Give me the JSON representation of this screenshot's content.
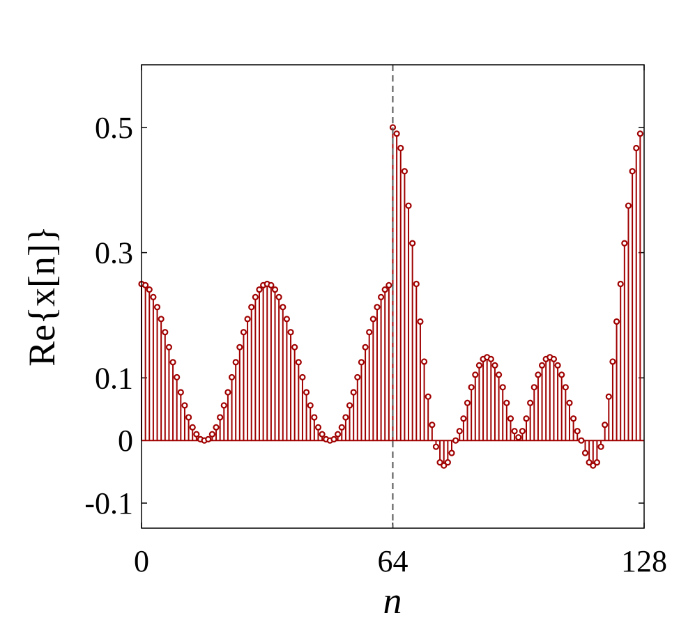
{
  "chart_data": {
    "type": "stem",
    "xlabel": "n",
    "ylabel": "Re{x[n]}",
    "xlim": [
      0,
      128
    ],
    "ylim": [
      -0.14,
      0.6
    ],
    "xticks": [
      0,
      64,
      128
    ],
    "yticks": [
      -0.1,
      0,
      0.1,
      0.3,
      0.5
    ],
    "vline": 64,
    "color": "#a00000",
    "x": [
      0,
      1,
      2,
      3,
      4,
      5,
      6,
      7,
      8,
      9,
      10,
      11,
      12,
      13,
      14,
      15,
      16,
      17,
      18,
      19,
      20,
      21,
      22,
      23,
      24,
      25,
      26,
      27,
      28,
      29,
      30,
      31,
      32,
      33,
      34,
      35,
      36,
      37,
      38,
      39,
      40,
      41,
      42,
      43,
      44,
      45,
      46,
      47,
      48,
      49,
      50,
      51,
      52,
      53,
      54,
      55,
      56,
      57,
      58,
      59,
      60,
      61,
      62,
      63,
      64,
      65,
      66,
      67,
      68,
      69,
      70,
      71,
      72,
      73,
      74,
      75,
      76,
      77,
      78,
      79,
      80,
      81,
      82,
      83,
      84,
      85,
      86,
      87,
      88,
      89,
      90,
      91,
      92,
      93,
      94,
      95,
      96,
      97,
      98,
      99,
      100,
      101,
      102,
      103,
      104,
      105,
      106,
      107,
      108,
      109,
      110,
      111,
      112,
      113,
      114,
      115,
      116,
      117,
      118,
      119,
      120,
      121,
      122,
      123,
      124,
      125,
      126,
      127
    ],
    "values": [
      0.25,
      0.248,
      0.241,
      0.229,
      0.213,
      0.194,
      0.173,
      0.149,
      0.125,
      0.101,
      0.077,
      0.056,
      0.037,
      0.021,
      0.01,
      0.002,
      0,
      0.002,
      0.01,
      0.021,
      0.037,
      0.056,
      0.077,
      0.101,
      0.125,
      0.149,
      0.173,
      0.194,
      0.213,
      0.229,
      0.241,
      0.248,
      0.25,
      0.248,
      0.241,
      0.229,
      0.213,
      0.194,
      0.173,
      0.149,
      0.125,
      0.101,
      0.077,
      0.056,
      0.037,
      0.021,
      0.01,
      0.002,
      0,
      0.002,
      0.01,
      0.021,
      0.037,
      0.056,
      0.077,
      0.101,
      0.125,
      0.149,
      0.173,
      0.194,
      0.213,
      0.229,
      0.241,
      0.248,
      0.5,
      0.49,
      0.467,
      0.43,
      0.375,
      0.315,
      0.25,
      0.19,
      0.126,
      0.07,
      0.025,
      -0.01,
      -0.035,
      -0.04,
      -0.035,
      -0.02,
      0,
      0.015,
      0.035,
      0.06,
      0.085,
      0.105,
      0.12,
      0.13,
      0.133,
      0.13,
      0.12,
      0.105,
      0.085,
      0.06,
      0.035,
      0.015,
      0.005,
      0.015,
      0.035,
      0.06,
      0.085,
      0.105,
      0.12,
      0.13,
      0.133,
      0.13,
      0.12,
      0.105,
      0.085,
      0.06,
      0.035,
      0.015,
      0,
      -0.02,
      -0.035,
      -0.04,
      -0.035,
      -0.01,
      0.025,
      0.07,
      0.126,
      0.19,
      0.25,
      0.315,
      0.375,
      0.43,
      0.467,
      0.49
    ]
  }
}
